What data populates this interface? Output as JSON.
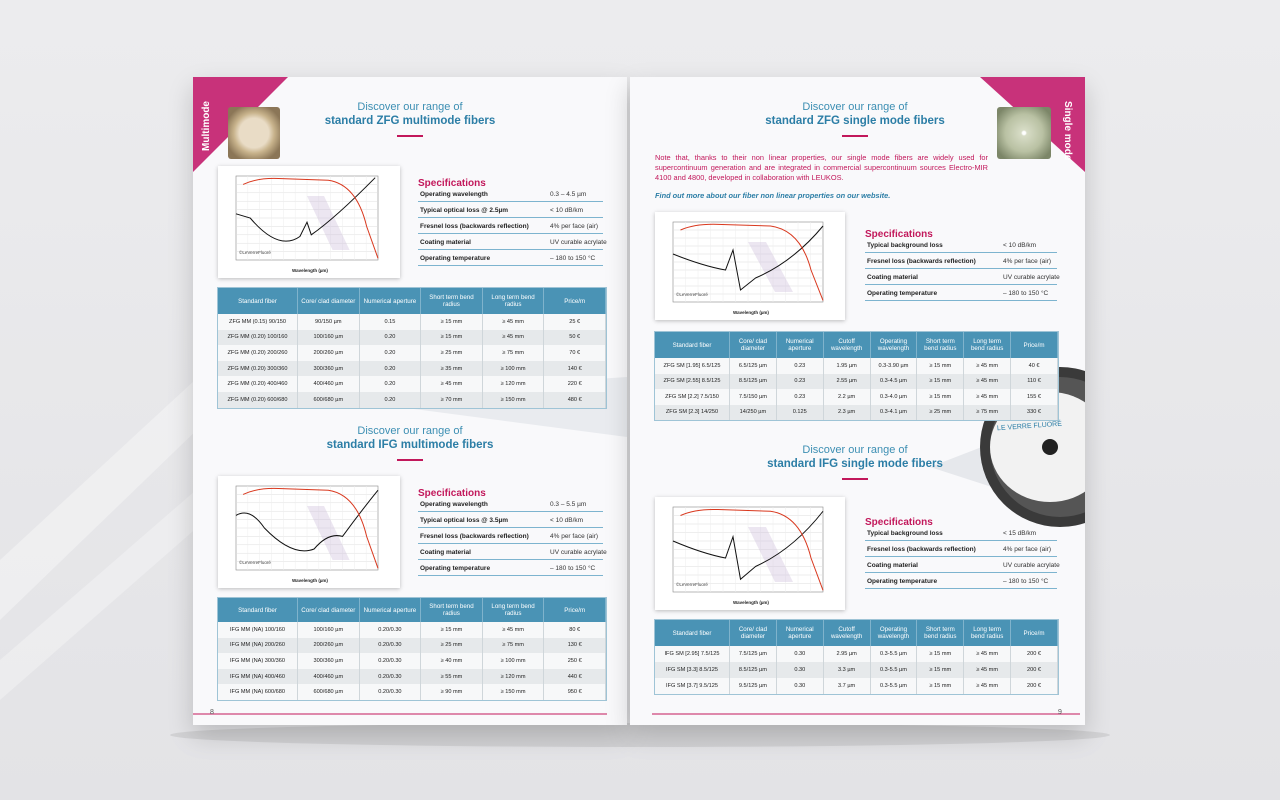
{
  "left_page": {
    "tab": "Multimode",
    "page_number": "8",
    "sections": [
      {
        "heading_line1": "Discover our range of",
        "heading_line2": "standard ZFG multimode fibers",
        "graph": {
          "credit": "©LeVerreFluoré",
          "x_label": "Wavelength (µm)"
        },
        "specs_title": "Specifications",
        "specs": [
          [
            "Operating wavelength",
            "0.3 – 4.5 µm"
          ],
          [
            "Typical optical loss @ 2.5µm",
            "< 10 dB/km"
          ],
          [
            "Fresnel loss (backwards reflection)",
            "4% per face (air)"
          ],
          [
            "Coating material",
            "UV curable acrylate"
          ],
          [
            "Operating temperature",
            "– 180 to 150 °C"
          ]
        ],
        "table": {
          "headers": [
            "Standard fiber",
            "Core/ clad diameter",
            "Numerical aperture",
            "Short term bend radius",
            "Long term bend radius",
            "Price/m"
          ],
          "rows": [
            [
              "ZFG MM (0.15) 90/150",
              "90/150 µm",
              "0.15",
              "≥ 15 mm",
              "≥ 45 mm",
              "25 €"
            ],
            [
              "ZFG MM (0.20) 100/160",
              "100/160 µm",
              "0.20",
              "≥ 15 mm",
              "≥ 45 mm",
              "50 €"
            ],
            [
              "ZFG MM (0.20) 200/260",
              "200/260 µm",
              "0.20",
              "≥ 25 mm",
              "≥ 75 mm",
              "70 €"
            ],
            [
              "ZFG MM (0.20) 300/360",
              "300/360 µm",
              "0.20",
              "≥ 35 mm",
              "≥ 100 mm",
              "140 €"
            ],
            [
              "ZFG MM (0.20) 400/460",
              "400/460 µm",
              "0.20",
              "≥ 45 mm",
              "≥ 120 mm",
              "220 €"
            ],
            [
              "ZFG MM (0.20) 600/680",
              "600/680 µm",
              "0.20",
              "≥ 70 mm",
              "≥ 150 mm",
              "480 €"
            ]
          ]
        }
      },
      {
        "heading_line1": "Discover our range of",
        "heading_line2": "standard IFG multimode fibers",
        "graph": {
          "credit": "©LeVerreFluoré",
          "x_label": "Wavelength (µm)"
        },
        "specs_title": "Specifications",
        "specs": [
          [
            "Operating wavelength",
            "0.3 – 5.5 µm"
          ],
          [
            "Typical optical loss @ 3.5µm",
            "< 10 dB/km"
          ],
          [
            "Fresnel loss (backwards reflection)",
            "4% per face (air)"
          ],
          [
            "Coating material",
            "UV curable acrylate"
          ],
          [
            "Operating temperature",
            "– 180 to 150 °C"
          ]
        ],
        "table": {
          "headers": [
            "Standard fiber",
            "Core/ clad diameter",
            "Numerical aperture",
            "Short term bend radius",
            "Long term bend radius",
            "Price/m"
          ],
          "rows": [
            [
              "IFG MM (NA) 100/160",
              "100/160 µm",
              "0.20/0.30",
              "≥ 15 mm",
              "≥ 45 mm",
              "80 €"
            ],
            [
              "IFG MM (NA) 200/260",
              "200/260 µm",
              "0.20/0.30",
              "≥ 25 mm",
              "≥ 75 mm",
              "130 €"
            ],
            [
              "IFG MM (NA) 300/360",
              "300/360 µm",
              "0.20/0.30",
              "≥ 40 mm",
              "≥ 100 mm",
              "250 €"
            ],
            [
              "IFG MM (NA) 400/460",
              "400/460 µm",
              "0.20/0.30",
              "≥ 55 mm",
              "≥ 120 mm",
              "440 €"
            ],
            [
              "IFG MM (NA) 600/680",
              "600/680 µm",
              "0.20/0.30",
              "≥ 90 mm",
              "≥ 150 mm",
              "950 €"
            ]
          ]
        }
      }
    ]
  },
  "right_page": {
    "tab": "Single mode",
    "page_number": "9",
    "note": "Note that, thanks to their non linear properties, our single mode fibers are widely used for supercontinuum generation and are integrated in commercial supercontinuum sources Electro-MIR 4100 and 4800, developed in collaboration with LEUKOS.",
    "link": "Find out more about our fiber non linear properties on our website.",
    "brand": "LE VERRE FLUORÉ",
    "sections": [
      {
        "heading_line1": "Discover our range of",
        "heading_line2": "standard ZFG single mode fibers",
        "graph": {
          "credit": "©LeVerreFluoré",
          "x_label": "Wavelength (µm)"
        },
        "specs_title": "Specifications",
        "specs": [
          [
            "Typical background loss",
            "< 10 dB/km"
          ],
          [
            "Fresnel loss (backwards reflection)",
            "4% per face (air)"
          ],
          [
            "Coating material",
            "UV curable acrylate"
          ],
          [
            "Operating temperature",
            "– 180 to 150 °C"
          ]
        ],
        "table": {
          "headers": [
            "Standard fiber",
            "Core/ clad diameter",
            "Numerical aperture",
            "Cutoff wavelength",
            "Operating wavelength",
            "Short term bend radius",
            "Long term bend radius",
            "Price/m"
          ],
          "rows": [
            [
              "ZFG SM [1.95] 6.5/125",
              "6.5/125 µm",
              "0.23",
              "1.95 µm",
              "0.3-3.90 µm",
              "≥ 15 mm",
              "≥ 45 mm",
              "40 €"
            ],
            [
              "ZFG SM [2.55] 8.5/125",
              "8.5/125 µm",
              "0.23",
              "2.55 µm",
              "0.3-4.5 µm",
              "≥ 15 mm",
              "≥ 45 mm",
              "110 €"
            ],
            [
              "ZFG SM [2.2] 7.5/150",
              "7.5/150 µm",
              "0.23",
              "2.2 µm",
              "0.3-4.0 µm",
              "≥ 15 mm",
              "≥ 45 mm",
              "155 €"
            ],
            [
              "ZFG SM [2.3] 14/250",
              "14/250 µm",
              "0.125",
              "2.3 µm",
              "0.3-4.1 µm",
              "≥ 25 mm",
              "≥ 75 mm",
              "330 €"
            ]
          ]
        }
      },
      {
        "heading_line1": "Discover our range of",
        "heading_line2": "standard IFG single mode fibers",
        "graph": {
          "credit": "©LeVerreFluoré",
          "x_label": "Wavelength (µm)"
        },
        "specs_title": "Specifications",
        "specs": [
          [
            "Typical background loss",
            "< 15 dB/km"
          ],
          [
            "Fresnel loss (backwards reflection)",
            "4% per face (air)"
          ],
          [
            "Coating material",
            "UV curable acrylate"
          ],
          [
            "Operating temperature",
            "– 180 to 150 °C"
          ]
        ],
        "table": {
          "headers": [
            "Standard fiber",
            "Core/ clad diameter",
            "Numerical aperture",
            "Cutoff wavelength",
            "Operating wavelength",
            "Short term bend radius",
            "Long term bend radius",
            "Price/m"
          ],
          "rows": [
            [
              "IFG SM [2.95] 7.5/125",
              "7.5/125 µm",
              "0.30",
              "2.95 µm",
              "0.3-5.5 µm",
              "≥ 15 mm",
              "≥ 45 mm",
              "200 €"
            ],
            [
              "IFG SM [3.3] 8.5/125",
              "8.5/125 µm",
              "0.30",
              "3.3 µm",
              "0.3-5.5 µm",
              "≥ 15 mm",
              "≥ 45 mm",
              "200 €"
            ],
            [
              "IFG SM [3.7] 9.5/125",
              "9.5/125 µm",
              "0.30",
              "3.7 µm",
              "0.3-5.5 µm",
              "≥ 15 mm",
              "≥ 45 mm",
              "200 €"
            ]
          ]
        }
      }
    ]
  }
}
